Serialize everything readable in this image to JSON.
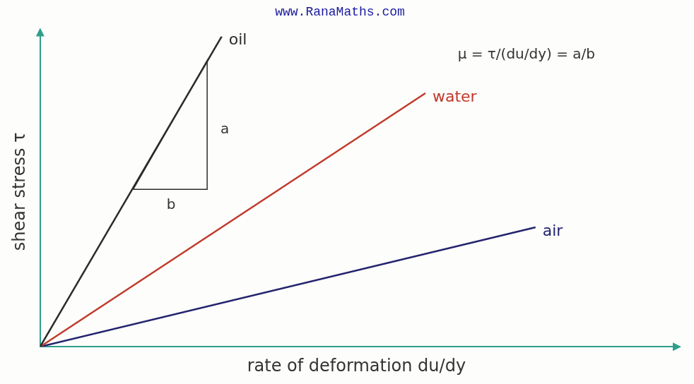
{
  "chart_data": {
    "type": "line",
    "title": "www.RanaMaths.com",
    "x_label": "rate of deformation du/dy",
    "y_label": "shear stress τ",
    "xlim": [
      0,
      10
    ],
    "ylim": [
      0,
      10
    ],
    "tick_labels": false,
    "grid": false,
    "series": [
      {
        "name": "oil",
        "color": "#2b2b2b",
        "x": [
          0,
          2.87
        ],
        "values": [
          0,
          10
        ]
      },
      {
        "name": "water",
        "color": "#c0392b",
        "x": [
          0,
          6.09
        ],
        "values": [
          0,
          8.17
        ]
      },
      {
        "name": "air",
        "color": "#23236e",
        "x": [
          0,
          7.83
        ],
        "values": [
          0,
          3.85
        ]
      }
    ],
    "slope_triangle": {
      "color": "#2b2b2b",
      "x": [
        1.47,
        2.64,
        2.64
      ],
      "values": [
        5.07,
        5.07,
        9.22
      ]
    },
    "annotations": [
      {
        "text": "μ = τ/(du/dy) = a/b",
        "x": 6.6,
        "y": 9.4
      },
      {
        "text": "a",
        "x": 2.85,
        "y": 7.0
      },
      {
        "text": "b",
        "x": 2.0,
        "y": 4.55
      }
    ]
  }
}
